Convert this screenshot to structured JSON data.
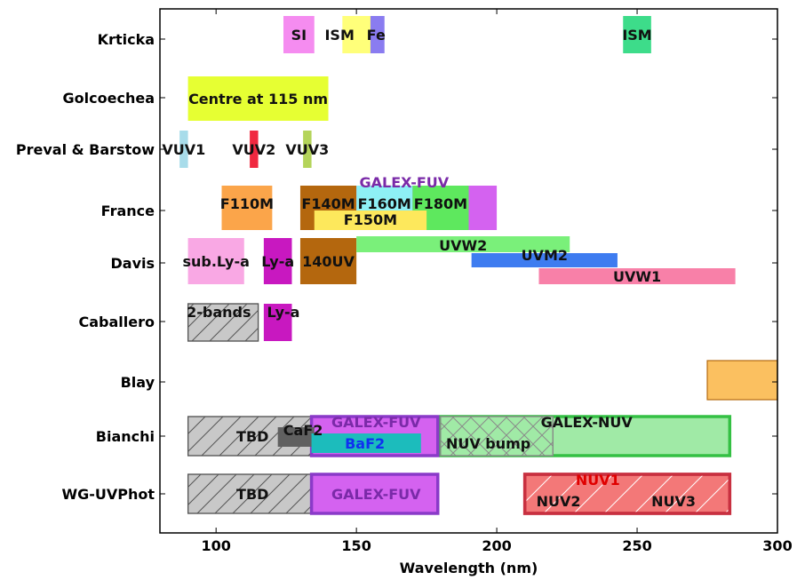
{
  "chart_data": {
    "type": "broken_barh",
    "xlabel": "Wavelength (nm)",
    "xlim": [
      80,
      300
    ],
    "xticks": [
      100,
      150,
      200,
      250,
      300
    ],
    "categories": [
      "Krticka",
      "Golcoechea",
      "Preval & Barstow",
      "France",
      "Davis",
      "Caballero",
      "Blay",
      "Bianchi",
      "WG-UVPhot"
    ],
    "grid": false,
    "bands": [
      {
        "row": "Krticka",
        "lane": "top",
        "x0": 124,
        "x1": 135,
        "color": "#f58cf0",
        "label": "SI",
        "label_x": 129.5
      },
      {
        "row": "Krticka",
        "lane": "top",
        "x0": 150,
        "x1": 160,
        "color": "#8a7cf0",
        "label": "",
        "label_x": null
      },
      {
        "row": "Krticka",
        "lane": "top",
        "x0": 145,
        "x1": 155,
        "color": "#ffff7a",
        "label": "ISM",
        "label_x": 144
      },
      {
        "row": "Krticka",
        "lane": "top",
        "x0": 0,
        "x1": 0,
        "color": "#ffffff",
        "label": "Fe",
        "label_x": 157
      },
      {
        "row": "Krticka",
        "lane": "top",
        "x0": 245,
        "x1": 255,
        "color": "#3ddc8a",
        "label": "ISM",
        "label_x": 250
      },
      {
        "row": "Golcoechea",
        "lane": "top",
        "x0": 90,
        "x1": 140,
        "color": "#e6ff33",
        "label": "Centre at 115 nm",
        "label_x": 115
      },
      {
        "row": "Preval & Barstow",
        "lane": "top",
        "x0": 87,
        "x1": 90,
        "color": "#a8dcea",
        "label": "VUV1",
        "label_x": 88.5
      },
      {
        "row": "Preval & Barstow",
        "lane": "top",
        "x0": 112,
        "x1": 115,
        "color": "#f02840",
        "label": "VUV2",
        "label_x": 113.5
      },
      {
        "row": "Preval & Barstow",
        "lane": "top",
        "x0": 131,
        "x1": 134,
        "color": "#b4d45a",
        "label": "VUV3",
        "label_x": 132.5
      },
      {
        "row": "France",
        "lane": "upper",
        "x0": 135,
        "x1": 200,
        "color": "#d462f0",
        "label": "GALEX-FUV",
        "label_x": 167,
        "label_color": "#7a2aa8",
        "label_pos": "above"
      },
      {
        "row": "France",
        "lane": "upper",
        "x0": 102,
        "x1": 120,
        "color": "#fba54a",
        "label": "F110M",
        "label_x": 111
      },
      {
        "row": "France",
        "lane": "upper",
        "x0": 130,
        "x1": 150,
        "color": "#b4670e",
        "label": "F140M",
        "label_x": 140
      },
      {
        "row": "France",
        "lane": "upper",
        "x0": 150,
        "x1": 170,
        "color": "#8ef0f5",
        "label": "F160M",
        "label_x": 160
      },
      {
        "row": "France",
        "lane": "upper",
        "x0": 170,
        "x1": 190,
        "color": "#5ee85e",
        "label": "F180M",
        "label_x": 180
      },
      {
        "row": "France",
        "lane": "lower",
        "x0": 135,
        "x1": 175,
        "color": "#fde85c",
        "label": "F150M",
        "label_x": 155
      },
      {
        "row": "Davis",
        "lane": "upper",
        "x0": 90,
        "x1": 110,
        "color": "#f9a8e4",
        "label": "sub.Ly-a",
        "label_x": 100
      },
      {
        "row": "Davis",
        "lane": "upper",
        "x0": 117,
        "x1": 127,
        "color": "#c818c0",
        "label": "Ly-a",
        "label_x": 122
      },
      {
        "row": "Davis",
        "lane": "upper",
        "x0": 130,
        "x1": 150,
        "color": "#b4670e",
        "label": "140UV",
        "label_x": 140
      },
      {
        "row": "Davis",
        "lane": "top",
        "x0": 150,
        "x1": 226,
        "color": "#7af07a",
        "label": "UVW2",
        "label_x": 188
      },
      {
        "row": "Davis",
        "lane": "middle",
        "x0": 191,
        "x1": 243,
        "color": "#3e7cf0",
        "label": "UVM2",
        "label_x": 217
      },
      {
        "row": "Davis",
        "lane": "bottom",
        "x0": 215,
        "x1": 285,
        "color": "#f880a8",
        "label": "UVW1",
        "label_x": 250
      },
      {
        "row": "Caballero",
        "lane": "full",
        "x0": 90,
        "x1": 115,
        "color": "#c8c8c8",
        "hatch": "/",
        "edge": "#555555",
        "label": "2-bands",
        "label_x": 101
      },
      {
        "row": "Caballero",
        "lane": "full",
        "x0": 117,
        "x1": 127,
        "color": "#c818c0",
        "label": "Ly-a",
        "label_x": 124
      },
      {
        "row": "Blay",
        "lane": "full",
        "x0": 275,
        "x1": 300,
        "color": "#fbc060",
        "edge": "#b46a10",
        "label": "",
        "label_x": null
      },
      {
        "row": "Bianchi",
        "lane": "full",
        "x0": 90,
        "x1": 134,
        "color": "#c8c8c8",
        "hatch": "/",
        "edge": "#555555",
        "label": "TBD",
        "label_x": 113
      },
      {
        "row": "Bianchi",
        "lane": "full",
        "x0": 180,
        "x1": 283,
        "color": "#a0eaa6",
        "edge": "#34c044",
        "thick": true,
        "label": "GALEX-NUV",
        "label_x": 232,
        "label_pos": "upper"
      },
      {
        "row": "Bianchi",
        "lane": "full",
        "x0": 180,
        "x1": 220,
        "color": "#a0eaa6",
        "hatch": "x",
        "edge": "#888888",
        "label": "NUV bump",
        "label_x": 197,
        "label_pos": "lower"
      },
      {
        "row": "Bianchi",
        "lane": "full",
        "x0": 134,
        "x1": 179,
        "color": "#d462f0",
        "edge": "#8a3ac8",
        "thick": true,
        "label": "GALEX-FUV",
        "label_x": 157,
        "label_color": "#7a2aa8",
        "label_pos": "upper"
      },
      {
        "row": "Bianchi",
        "lane": "cf2",
        "x0": 122,
        "x1": 135,
        "color": "#606060",
        "label": "CaF2",
        "label_x": 131
      },
      {
        "row": "Bianchi",
        "lane": "baf2",
        "x0": 134,
        "x1": 173,
        "color": "#1cbcbc",
        "label": "BaF2",
        "label_x": 153,
        "label_color": "#1030f0"
      },
      {
        "row": "WG-UVPhot",
        "lane": "full",
        "x0": 90,
        "x1": 134,
        "color": "#c8c8c8",
        "hatch": "/",
        "edge": "#555555",
        "label": "TBD",
        "label_x": 113
      },
      {
        "row": "WG-UVPhot",
        "lane": "full",
        "x0": 134,
        "x1": 179,
        "color": "#d462f0",
        "edge": "#8a3ac8",
        "thick": true,
        "label": "GALEX-FUV",
        "label_x": 157,
        "label_color": "#7a2aa8"
      },
      {
        "row": "WG-UVPhot",
        "lane": "full",
        "x0": 210,
        "x1": 283,
        "color": "#f37878",
        "edge": "#c83040",
        "thick": true,
        "hatch": "/",
        "hatch_color": "#ffffff",
        "label": "NUV1",
        "label_x": 236,
        "label_color": "#e00000",
        "label_pos": "upper"
      },
      {
        "row": "WG-UVPhot",
        "lane": "full",
        "x0": 0,
        "x1": 0,
        "color": "#ffffff",
        "label": "NUV2",
        "label_x": 222,
        "label_pos": "lower"
      },
      {
        "row": "WG-UVPhot",
        "lane": "full",
        "x0": 0,
        "x1": 0,
        "color": "#ffffff",
        "label": "NUV3",
        "label_x": 263,
        "label_pos": "lower"
      }
    ]
  }
}
